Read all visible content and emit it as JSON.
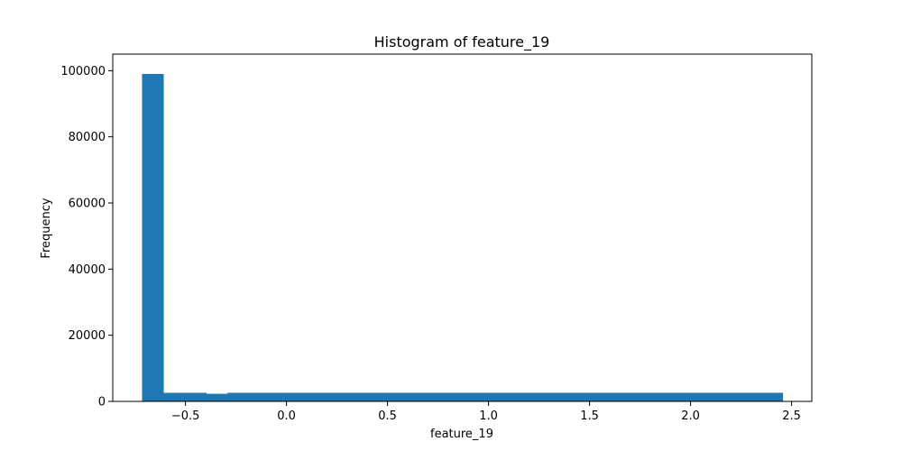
{
  "chart_data": {
    "type": "bar",
    "title": "Histogram of feature_19",
    "xlabel": "feature_19",
    "ylabel": "Frequency",
    "xlim": [
      -0.86,
      2.6
    ],
    "ylim": [
      0,
      105000
    ],
    "bar_color": "#1f77b4",
    "grid": false,
    "x_ticks": [
      {
        "value": -0.5,
        "label": "−0.5"
      },
      {
        "value": 0.0,
        "label": "0.0"
      },
      {
        "value": 0.5,
        "label": "0.5"
      },
      {
        "value": 1.0,
        "label": "1.0"
      },
      {
        "value": 1.5,
        "label": "1.5"
      },
      {
        "value": 2.0,
        "label": "2.0"
      },
      {
        "value": 2.5,
        "label": "2.5"
      }
    ],
    "y_ticks": [
      {
        "value": 0,
        "label": "0"
      },
      {
        "value": 20000,
        "label": "20000"
      },
      {
        "value": 40000,
        "label": "40000"
      },
      {
        "value": 60000,
        "label": "60000"
      },
      {
        "value": 80000,
        "label": "80000"
      },
      {
        "value": 100000,
        "label": "100000"
      }
    ],
    "bins": {
      "start": -0.715,
      "width": 0.1057,
      "counts": [
        99000,
        2600,
        2600,
        2300,
        2600,
        2600,
        2600,
        2600,
        2600,
        2600,
        2600,
        2600,
        2600,
        2600,
        2600,
        2600,
        2600,
        2600,
        2600,
        2600,
        2600,
        2600,
        2600,
        2600,
        2600,
        2600,
        2600,
        2600,
        2600,
        2600
      ]
    }
  }
}
